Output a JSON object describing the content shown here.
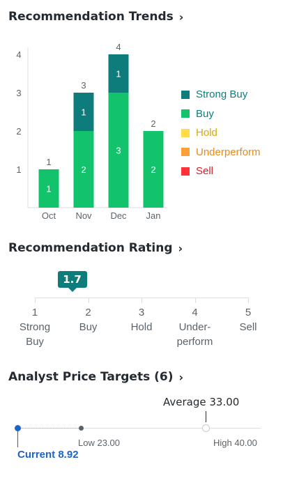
{
  "trends": {
    "title": "Recommendation Trends",
    "chevron": "›"
  },
  "legend": [
    {
      "label": "Strong Buy",
      "color": "#0f7c7c",
      "text_color": "#0f7c7c"
    },
    {
      "label": "Buy",
      "color": "#12c36b",
      "text_color": "#0f7c7c"
    },
    {
      "label": "Hold",
      "color": "#ffdc48",
      "text_color": "#e0a800"
    },
    {
      "label": "Underperform",
      "color": "#ff9f3a",
      "text_color": "#e68a1a"
    },
    {
      "label": "Sell",
      "color": "#ff333a",
      "text_color": "#d31d2a"
    }
  ],
  "chart_data": {
    "type": "bar",
    "stacked": true,
    "categories": [
      "Oct",
      "Nov",
      "Dec",
      "Jan"
    ],
    "series": [
      {
        "name": "Buy",
        "color": "#12c36b",
        "values": [
          1,
          2,
          3,
          2
        ]
      },
      {
        "name": "Strong Buy",
        "color": "#0f7c7c",
        "values": [
          0,
          1,
          1,
          0
        ]
      }
    ],
    "totals": [
      1,
      3,
      4,
      2
    ],
    "y_ticks": [
      1,
      2,
      3,
      4
    ],
    "ylim": [
      0,
      4
    ],
    "grid": false,
    "legend_position": "right"
  },
  "rating": {
    "title": "Recommendation Rating",
    "chevron": "›",
    "value": "1.7",
    "value_num": 1.7,
    "scale": [
      {
        "num": "1",
        "text": "Strong Buy"
      },
      {
        "num": "2",
        "text": "Buy"
      },
      {
        "num": "3",
        "text": "Hold"
      },
      {
        "num": "4",
        "text": "Under-perform"
      },
      {
        "num": "5",
        "text": "Sell"
      }
    ]
  },
  "targets": {
    "title": "Analyst Price Targets (6)",
    "chevron": "›",
    "average_label": "Average 33.00",
    "low_label": "Low 23.00",
    "high_label": "High 40.00",
    "current_label": "Current 8.92",
    "current": 8.92,
    "low": 23.0,
    "average": 33.0,
    "high": 40.0
  }
}
